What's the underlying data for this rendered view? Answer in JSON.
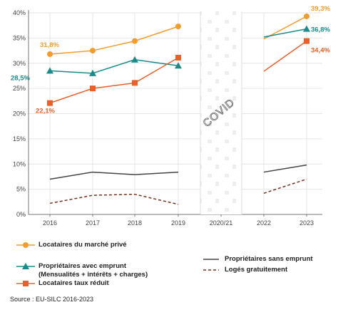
{
  "chart_data": {
    "type": "line",
    "categories": [
      "2016",
      "2017",
      "2018",
      "2019",
      "2020/21",
      "2022",
      "2023"
    ],
    "ylim": [
      0,
      40
    ],
    "yticks": [
      "0%",
      "5%",
      "10%",
      "15%",
      "20%",
      "25%",
      "30%",
      "35%",
      "40%"
    ],
    "gap_label": "COVID",
    "series": [
      {
        "name": "Locataires du marché privé",
        "color": "#f39c2b",
        "marker": "circle",
        "dash": false,
        "values": [
          31.8,
          32.5,
          34.4,
          37.3,
          null,
          34.8,
          39.3
        ],
        "labels": {
          "0": "31,8%",
          "6": "39,3%"
        }
      },
      {
        "name": "Propriétaires avec emprunt (Mensualités + intérêts + charges)",
        "color": "#1a8a8a",
        "marker": "triangle",
        "dash": false,
        "values": [
          28.5,
          28.0,
          30.7,
          29.5,
          null,
          35.2,
          36.8
        ],
        "labels": {
          "0": "28,5%",
          "6": "36,8%"
        }
      },
      {
        "name": "Locataires taux réduit",
        "color": "#e8612a",
        "marker": "square",
        "dash": false,
        "values": [
          22.1,
          25.0,
          26.1,
          31.1,
          null,
          28.4,
          34.4
        ],
        "labels": {
          "0": "22,1%",
          "6": "34,4%"
        }
      },
      {
        "name": "Propriétaires sans emprunt",
        "color": "#444444",
        "marker": "none",
        "dash": false,
        "values": [
          7.0,
          8.4,
          7.9,
          8.4,
          null,
          8.4,
          9.8
        ]
      },
      {
        "name": "Logés gratuitement",
        "color": "#7a2e1f",
        "marker": "none",
        "dash": true,
        "values": [
          2.2,
          3.8,
          4.0,
          2.0,
          null,
          4.2,
          7.0
        ]
      }
    ]
  },
  "legend": {
    "private_renters": "Locataires du marché privé",
    "owners_mortgage_line1": "Propriétaires avec emprunt",
    "owners_mortgage_line2": "(Mensualités + intérêts + charges)",
    "reduced_renters": "Locataires taux réduit",
    "owners_no_mortgage": "Propriétaires sans emprunt",
    "free_housing": "Logés gratuitement"
  },
  "source": "Source : EU-SILC 2016-2023"
}
